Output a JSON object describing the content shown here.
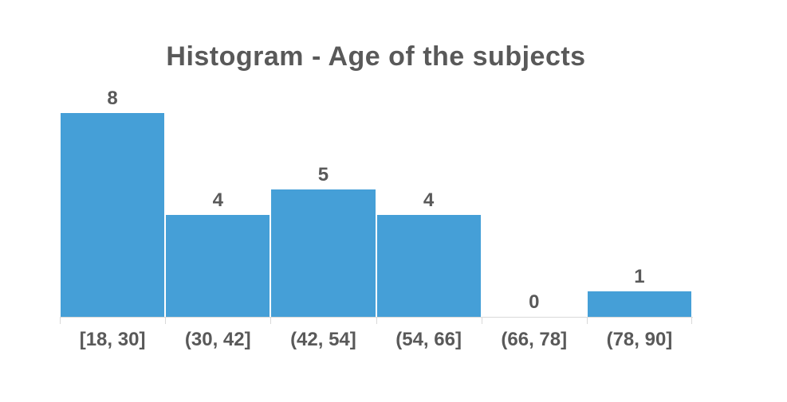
{
  "window": {
    "background_color": "#FFFFFF"
  },
  "chart": {
    "title": "Histogram - Age of the subjects",
    "bar_color": "#459FD7",
    "text_color": "#595959",
    "axis_color": "#D9D9D9"
  },
  "chart_data": {
    "type": "bar",
    "subtype": "histogram",
    "title": "Histogram - Age of the subjects",
    "categories": [
      "[18, 30]",
      "(30, 42]",
      "(42, 54]",
      "(54, 66]",
      "(66, 78]",
      "(78, 90]"
    ],
    "values": [
      8,
      4,
      5,
      4,
      0,
      1
    ],
    "data_labels": true,
    "xlabel": "",
    "ylabel": "",
    "ylim": [
      0,
      8
    ],
    "bin_width": 12,
    "grid": false,
    "legend": false,
    "y_axis_visible": false,
    "x_axis_visible": true
  }
}
